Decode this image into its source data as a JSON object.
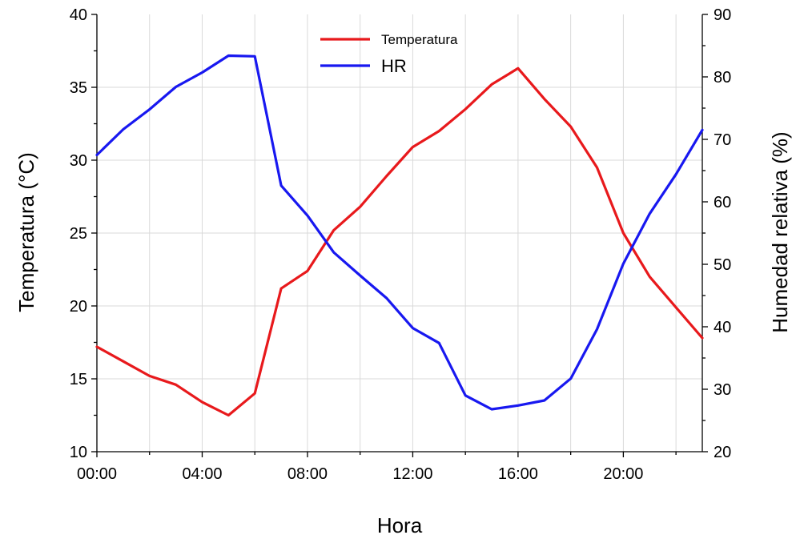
{
  "chart_data": {
    "type": "line",
    "xlabel": "Hora",
    "ylabel_left": "Temperatura (°C)",
    "ylabel_right": "Humedad relativa (%)",
    "x": [
      0,
      1,
      2,
      3,
      4,
      5,
      6,
      7,
      8,
      9,
      10,
      11,
      12,
      13,
      14,
      15,
      16,
      17,
      18,
      19,
      20,
      21,
      22,
      23
    ],
    "xlim": [
      0,
      23
    ],
    "x_ticks": [
      0,
      4,
      8,
      12,
      16,
      20
    ],
    "x_tick_labels": [
      "00:00",
      "04:00",
      "08:00",
      "12:00",
      "16:00",
      "20:00"
    ],
    "ylim_left": [
      10,
      40
    ],
    "y_ticks_left": [
      10,
      15,
      20,
      25,
      30,
      35,
      40
    ],
    "ylim_right": [
      20,
      90
    ],
    "y_ticks_right": [
      20,
      30,
      40,
      50,
      60,
      70,
      80,
      90
    ],
    "grid": true,
    "legend_position": "top-center",
    "series": [
      {
        "name": "Temperatura",
        "axis": "left",
        "color": "#e8191c",
        "values": [
          17.2,
          16.2,
          15.2,
          14.6,
          13.4,
          12.5,
          14.0,
          21.2,
          22.4,
          25.2,
          26.8,
          28.9,
          30.9,
          32.0,
          33.5,
          35.2,
          36.3,
          34.2,
          32.3,
          29.5,
          25.0,
          22.0,
          19.9,
          17.8
        ]
      },
      {
        "name": "HR",
        "axis": "right",
        "color": "#1818f0",
        "values": [
          67.5,
          71.6,
          74.8,
          78.4,
          80.7,
          83.4,
          83.3,
          62.6,
          57.8,
          51.9,
          48.2,
          44.6,
          39.8,
          37.4,
          29.0,
          26.8,
          27.4,
          28.2,
          31.7,
          39.6,
          50.1,
          58.1,
          64.4,
          71.5
        ]
      }
    ]
  }
}
